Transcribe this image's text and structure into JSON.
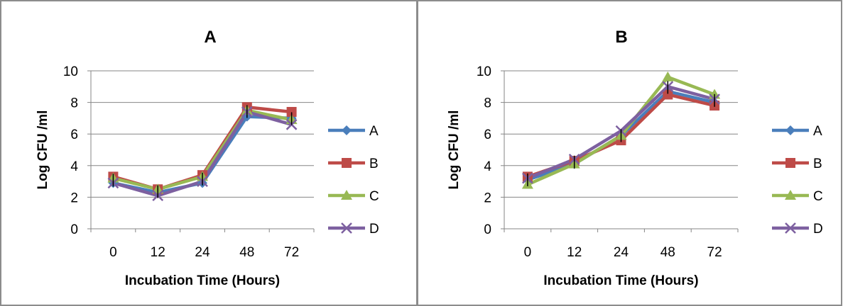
{
  "chart_data": [
    {
      "type": "line",
      "title": "A",
      "xlabel": "Incubation Time (Hours)",
      "ylabel": "Log CFU /ml",
      "categories": [
        "0",
        "12",
        "24",
        "48",
        "72"
      ],
      "ylim": [
        0,
        10
      ],
      "yticks": [
        "0",
        "2",
        "4",
        "6",
        "8",
        "10"
      ],
      "grid": true,
      "legend_position": "right",
      "series": [
        {
          "name": "A",
          "color": "#4a7ebb",
          "marker": "diamond",
          "values": [
            2.9,
            2.3,
            2.9,
            7.1,
            7.0
          ]
        },
        {
          "name": "B",
          "color": "#be4b48",
          "marker": "square",
          "values": [
            3.3,
            2.5,
            3.4,
            7.7,
            7.4
          ]
        },
        {
          "name": "C",
          "color": "#98b954",
          "marker": "triangle",
          "values": [
            3.2,
            2.5,
            3.3,
            7.5,
            6.9
          ]
        },
        {
          "name": "D",
          "color": "#7d60a0",
          "marker": "x",
          "values": [
            2.9,
            2.1,
            3.0,
            7.4,
            6.6
          ]
        }
      ]
    },
    {
      "type": "line",
      "title": "B",
      "xlabel": "Incubation Time (Hours)",
      "ylabel": "Log CFU /ml",
      "categories": [
        "0",
        "12",
        "24",
        "48",
        "72"
      ],
      "ylim": [
        0,
        10
      ],
      "yticks": [
        "0",
        "2",
        "4",
        "6",
        "8",
        "10"
      ],
      "grid": true,
      "legend_position": "right",
      "series": [
        {
          "name": "A",
          "color": "#4a7ebb",
          "marker": "diamond",
          "values": [
            3.1,
            4.1,
            5.9,
            8.7,
            8.0
          ]
        },
        {
          "name": "B",
          "color": "#be4b48",
          "marker": "square",
          "values": [
            3.3,
            4.3,
            5.6,
            8.5,
            7.8
          ]
        },
        {
          "name": "C",
          "color": "#98b954",
          "marker": "triangle",
          "values": [
            2.8,
            4.1,
            5.9,
            9.6,
            8.5
          ]
        },
        {
          "name": "D",
          "color": "#7d60a0",
          "marker": "x",
          "values": [
            3.2,
            4.4,
            6.2,
            9.0,
            8.2
          ]
        }
      ]
    }
  ]
}
